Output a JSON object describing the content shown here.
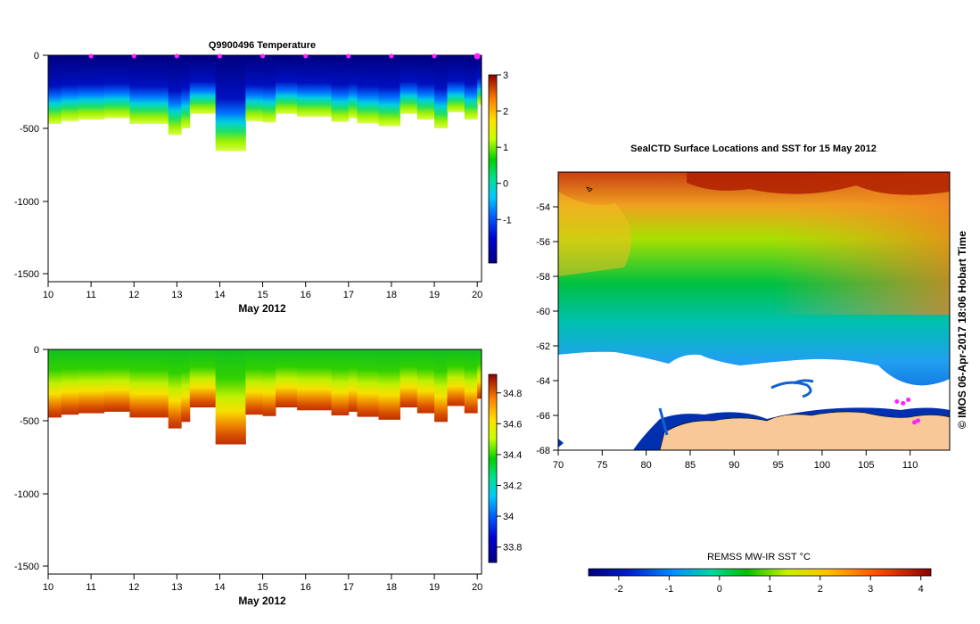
{
  "chart_data": [
    {
      "type": "heatmap",
      "title": "Q9900496  Temperature",
      "xlabel": "May 2012",
      "x_ticks": [
        "10",
        "11",
        "12",
        "13",
        "14",
        "15",
        "16",
        "17",
        "18",
        "19",
        "20"
      ],
      "xlim": [
        10,
        20.1
      ],
      "y_ticks": [
        "0",
        "-500",
        "-1000",
        "-1500"
      ],
      "ylim": [
        -1550,
        0
      ],
      "colorbar_ticks": [
        "3",
        "2",
        "1",
        "0",
        "-1"
      ],
      "colorbar_range": [
        -2.2,
        3
      ],
      "profile_markers_x": [
        11,
        12,
        13,
        14,
        15,
        16,
        17,
        18,
        19,
        20
      ],
      "last_marker_x": 20,
      "profiles": [
        {
          "t0": 10.0,
          "t1": 10.3,
          "bottom": -470
        },
        {
          "t0": 10.3,
          "t1": 10.7,
          "bottom": -450
        },
        {
          "t0": 10.7,
          "t1": 11.3,
          "bottom": -440
        },
        {
          "t0": 11.3,
          "t1": 11.9,
          "bottom": -430
        },
        {
          "t0": 11.9,
          "t1": 12.5,
          "bottom": -470
        },
        {
          "t0": 12.5,
          "t1": 12.8,
          "bottom": -470
        },
        {
          "t0": 12.8,
          "t1": 13.1,
          "bottom": -545
        },
        {
          "t0": 13.1,
          "t1": 13.3,
          "bottom": -500
        },
        {
          "t0": 13.3,
          "t1": 13.9,
          "bottom": -400
        },
        {
          "t0": 13.9,
          "t1": 14.6,
          "bottom": -655
        },
        {
          "t0": 14.6,
          "t1": 15.0,
          "bottom": -450
        },
        {
          "t0": 15.0,
          "t1": 15.3,
          "bottom": -460
        },
        {
          "t0": 15.3,
          "t1": 15.8,
          "bottom": -400
        },
        {
          "t0": 15.8,
          "t1": 16.2,
          "bottom": -420
        },
        {
          "t0": 16.2,
          "t1": 16.6,
          "bottom": -420
        },
        {
          "t0": 16.6,
          "t1": 17.0,
          "bottom": -455
        },
        {
          "t0": 17.0,
          "t1": 17.2,
          "bottom": -430
        },
        {
          "t0": 17.2,
          "t1": 17.7,
          "bottom": -465
        },
        {
          "t0": 17.7,
          "t1": 18.2,
          "bottom": -485
        },
        {
          "t0": 18.2,
          "t1": 18.6,
          "bottom": -400
        },
        {
          "t0": 18.6,
          "t1": 19.0,
          "bottom": -440
        },
        {
          "t0": 19.0,
          "t1": 19.3,
          "bottom": -500
        },
        {
          "t0": 19.3,
          "t1": 19.7,
          "bottom": -390
        },
        {
          "t0": 19.7,
          "t1": 20.0,
          "bottom": -440
        },
        {
          "t0": 20.0,
          "t1": 20.1,
          "bottom": -340
        }
      ]
    },
    {
      "type": "heatmap",
      "title": "",
      "xlabel": "May 2012",
      "x_ticks": [
        "10",
        "11",
        "12",
        "13",
        "14",
        "15",
        "16",
        "17",
        "18",
        "19",
        "20"
      ],
      "xlim": [
        10,
        20.1
      ],
      "y_ticks": [
        "0",
        "-500",
        "-1000",
        "-1500"
      ],
      "ylim": [
        -1550,
        0
      ],
      "colorbar_ticks": [
        "34.8",
        "34.6",
        "34.4",
        "34.2",
        "34",
        "33.8"
      ],
      "colorbar_range": [
        33.7,
        34.92
      ]
    },
    {
      "type": "heatmap",
      "title": "SealCTD Surface Locations and SST for 15 May 2012",
      "x_ticks": [
        "70",
        "75",
        "80",
        "85",
        "90",
        "95",
        "100",
        "105",
        "110"
      ],
      "xlim": [
        70,
        114.5
      ],
      "y_ticks": [
        "-54",
        "-56",
        "-58",
        "-60",
        "-62",
        "-64",
        "-66",
        "-68"
      ],
      "ylim": [
        -68,
        -52
      ],
      "colorbar_label": "REMSS MW-IR SST °C",
      "colorbar_ticks": [
        "-2",
        "-1",
        "0",
        "1",
        "2",
        "3",
        "4"
      ],
      "colorbar_range": [
        -2.6,
        4.2
      ],
      "seal_locations": [
        [
          108.5,
          -65.2
        ],
        [
          109.2,
          -65.3
        ],
        [
          109.8,
          -65.1
        ],
        [
          110.5,
          -66.4
        ],
        [
          110.9,
          -66.3
        ]
      ],
      "credit": "© IMOS 06-Apr-2017 18:06 Hobart Time"
    }
  ]
}
